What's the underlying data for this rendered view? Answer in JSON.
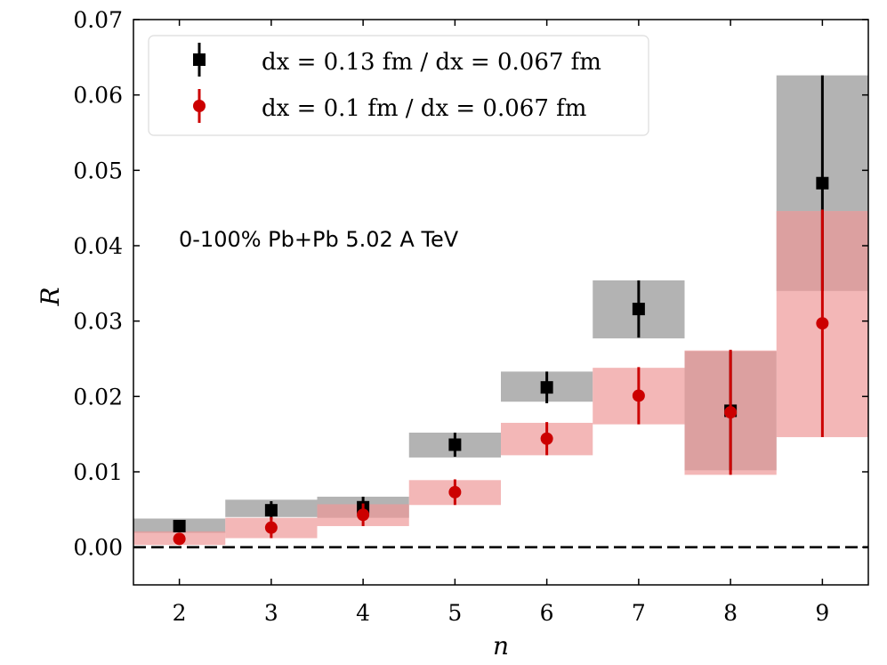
{
  "chart_data": {
    "type": "scatter",
    "xlabel": "n",
    "ylabel": "R",
    "xlim": [
      1.5,
      9.5
    ],
    "ylim": [
      -0.005,
      0.07
    ],
    "x_ticks": [
      "2",
      "3",
      "4",
      "5",
      "6",
      "7",
      "8",
      "9"
    ],
    "y_ticks": [
      "0.00",
      "0.01",
      "0.02",
      "0.03",
      "0.04",
      "0.05",
      "0.06",
      "0.07"
    ],
    "annotation": "0-100% Pb+Pb 5.02 A TeV",
    "legend_position": "top-left",
    "reference_line": {
      "y": 0,
      "style": "dashed"
    },
    "series": [
      {
        "name": "dx = 0.13 fm / dx = 0.067 fm",
        "marker": "square",
        "color": "#000000",
        "band_color": "#a0a0a0",
        "x": [
          2,
          3,
          4,
          5,
          6,
          7,
          8,
          9
        ],
        "y": [
          0.0028,
          0.0049,
          0.0053,
          0.0136,
          0.0212,
          0.0316,
          0.0181,
          0.0483
        ],
        "err": [
          0.0008,
          0.0012,
          0.0014,
          0.0016,
          0.0021,
          0.0038,
          0.0079,
          0.0143
        ],
        "band_low": [
          0.0019,
          0.004,
          0.0039,
          0.0119,
          0.0193,
          0.0277,
          0.0102,
          0.034
        ],
        "band_high": [
          0.0038,
          0.0063,
          0.0067,
          0.0152,
          0.0233,
          0.0354,
          0.026,
          0.0626
        ]
      },
      {
        "name": "dx = 0.1 fm / dx = 0.067 fm",
        "marker": "circle",
        "color": "#cc0000",
        "band_color": "#ee9999",
        "x": [
          2,
          3,
          4,
          5,
          6,
          7,
          8,
          9
        ],
        "y": [
          0.0011,
          0.0026,
          0.0043,
          0.0073,
          0.0144,
          0.0201,
          0.0179,
          0.0297
        ],
        "err": [
          0.0007,
          0.0014,
          0.0015,
          0.0017,
          0.0022,
          0.0038,
          0.0083,
          0.0151
        ],
        "band_low": [
          0.0003,
          0.0012,
          0.0028,
          0.0056,
          0.0122,
          0.0163,
          0.0096,
          0.0146
        ],
        "band_high": [
          0.0021,
          0.0039,
          0.0057,
          0.0089,
          0.0165,
          0.0238,
          0.0261,
          0.0446
        ]
      }
    ]
  }
}
